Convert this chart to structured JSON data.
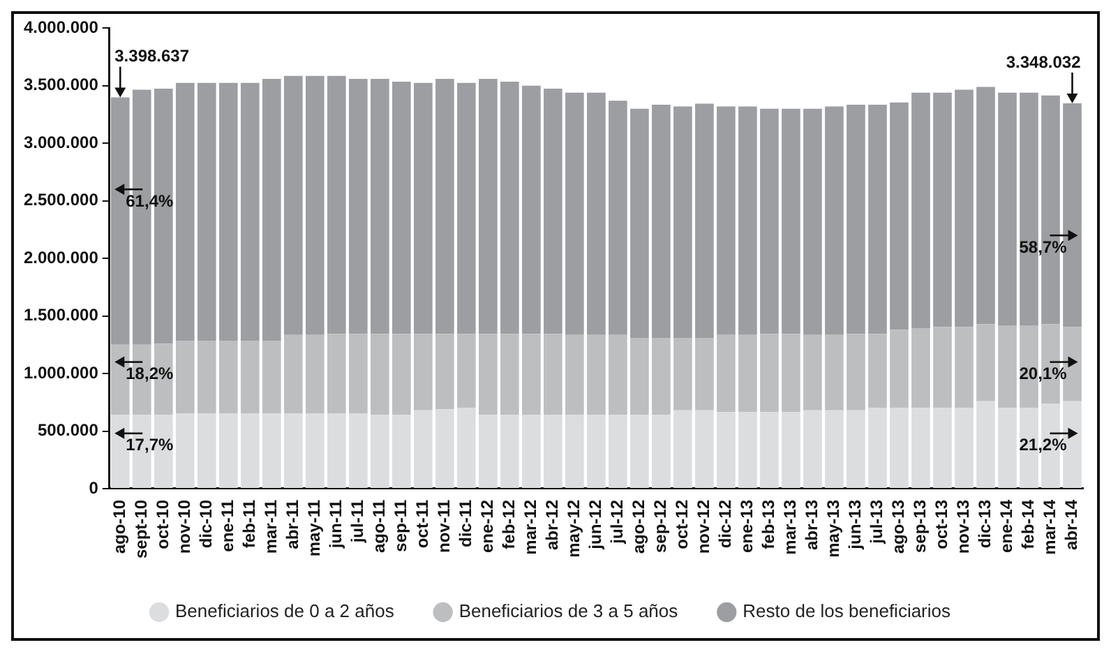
{
  "chart_data": {
    "type": "bar",
    "stacked": true,
    "categories": [
      "ago-10",
      "sept-10",
      "oct-10",
      "nov-10",
      "dic-10",
      "ene-11",
      "feb-11",
      "mar-11",
      "abr-11",
      "may-11",
      "jun-11",
      "jul-11",
      "ago-11",
      "sep-11",
      "oct-11",
      "nov-11",
      "dic-11",
      "ene-12",
      "feb-12",
      "mar-12",
      "abr-12",
      "may-12",
      "jun-12",
      "jul-12",
      "ago-12",
      "sep-12",
      "oct-12",
      "nov-12",
      "dic-12",
      "ene-13",
      "feb-13",
      "mar-13",
      "abr-13",
      "may-13",
      "jun-13",
      "jul-13",
      "ago-13",
      "sep-13",
      "oct-13",
      "nov-13",
      "dic-13",
      "ene-14",
      "feb-14",
      "mar-14",
      "abr-14"
    ],
    "series": [
      {
        "name": "Beneficiarios de 0 a 2 años",
        "color": "#dcdddf",
        "values": [
          640000,
          640000,
          640000,
          655000,
          655000,
          655000,
          655000,
          655000,
          655000,
          655000,
          655000,
          655000,
          640000,
          640000,
          680000,
          690000,
          700000,
          640000,
          640000,
          640000,
          640000,
          640000,
          640000,
          640000,
          640000,
          640000,
          680000,
          680000,
          665000,
          665000,
          665000,
          665000,
          680000,
          680000,
          680000,
          700000,
          700000,
          700000,
          700000,
          700000,
          760000,
          700000,
          700000,
          740000,
          760000
        ]
      },
      {
        "name": "Beneficiarios de 3 a 5 años",
        "color": "#bdbec0",
        "values": [
          610000,
          610000,
          620000,
          630000,
          630000,
          630000,
          630000,
          630000,
          680000,
          680000,
          690000,
          690000,
          705000,
          705000,
          665000,
          655000,
          645000,
          705000,
          705000,
          705000,
          705000,
          695000,
          695000,
          695000,
          670000,
          670000,
          630000,
          630000,
          670000,
          670000,
          680000,
          680000,
          655000,
          655000,
          665000,
          645000,
          680000,
          695000,
          705000,
          705000,
          670000,
          715000,
          715000,
          690000,
          645000
        ]
      },
      {
        "name": "Resto de los beneficiarios",
        "color": "#9d9ea2",
        "values": [
          2148637,
          2215000,
          2215000,
          2240000,
          2240000,
          2240000,
          2240000,
          2275000,
          2250000,
          2250000,
          2240000,
          2215000,
          2215000,
          2190000,
          2180000,
          2215000,
          2180000,
          2215000,
          2190000,
          2155000,
          2130000,
          2105000,
          2105000,
          2035000,
          1990000,
          2025000,
          2010000,
          2035000,
          1985000,
          1985000,
          1955000,
          1955000,
          1965000,
          1985000,
          1990000,
          1990000,
          1975000,
          2045000,
          2035000,
          2060000,
          2060000,
          2025000,
          2025000,
          1985000,
          1943032
        ]
      }
    ],
    "ylim": [
      0,
      4000000
    ],
    "yticks": [
      {
        "value": 0,
        "label": "0"
      },
      {
        "value": 500000,
        "label": "500.000"
      },
      {
        "value": 1000000,
        "label": "1.000.000"
      },
      {
        "value": 1500000,
        "label": "1.500.000"
      },
      {
        "value": 2000000,
        "label": "2.000.000"
      },
      {
        "value": 2500000,
        "label": "2.500.000"
      },
      {
        "value": 3000000,
        "label": "3.000.000"
      },
      {
        "value": 3500000,
        "label": "3.500.000"
      },
      {
        "value": 4000000,
        "label": "4.000.000"
      }
    ],
    "grid": false,
    "legend": "bottom",
    "annotations": [
      {
        "text": "3.398.637",
        "x": "ago-10",
        "y": 3398637
      },
      {
        "text": "3.348.032",
        "x": "abr-14",
        "y": 3348032
      },
      {
        "text": "61,4%",
        "x": "ago-10",
        "y": 2600000
      },
      {
        "text": "18,2%",
        "x": "ago-10",
        "y": 1100000
      },
      {
        "text": "17,7%",
        "x": "ago-10",
        "y": 480000
      },
      {
        "text": "58,7%",
        "x": "abr-14",
        "y": 2200000
      },
      {
        "text": "20,1%",
        "x": "abr-14",
        "y": 1100000
      },
      {
        "text": "21,2%",
        "x": "abr-14",
        "y": 480000
      }
    ]
  }
}
